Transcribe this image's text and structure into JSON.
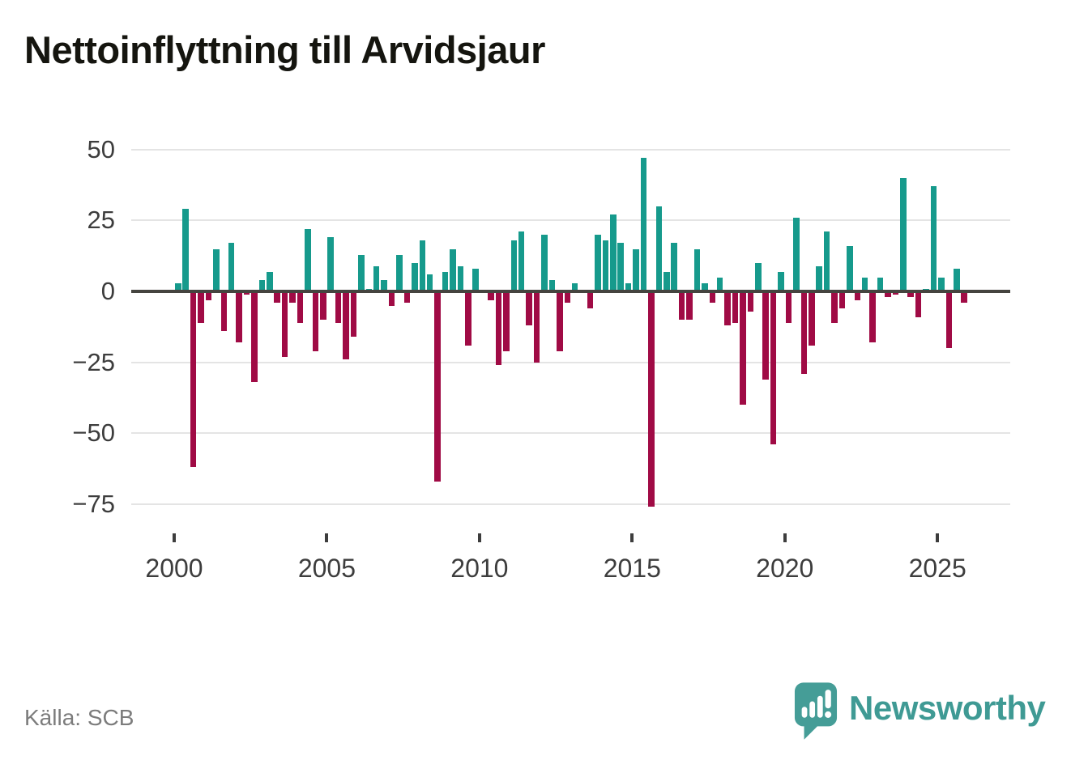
{
  "title": "Nettoinflyttning till Arvidsjaur",
  "source": "Källa: SCB",
  "brand": {
    "name": "Newsworthy"
  },
  "colors": {
    "positive_bar": "#169a8c",
    "negative_bar": "#a00b45",
    "zero_line": "#45443f",
    "gridline": "#e4e4e4",
    "axis_text": "#3d3d3d",
    "source_text": "#7c7c7c",
    "brand_teal": "#3f9a94",
    "title_text": "#15150f"
  },
  "y_axis": {
    "ticks": [
      50,
      25,
      0,
      -25,
      -50,
      -75
    ]
  },
  "x_axis": {
    "ticks": [
      2000,
      2005,
      2010,
      2015,
      2020,
      2025
    ]
  },
  "chart_data": {
    "type": "bar",
    "title": "Nettoinflyttning till Arvidsjaur",
    "frequency": "quarterly",
    "start_period": "2000 Q1",
    "end_period": "2025 Q4",
    "ylim": [
      -75,
      50
    ],
    "xlabel": "",
    "ylabel": "",
    "grid": true,
    "legend": false,
    "values": [
      3,
      29,
      -62,
      -11,
      -3,
      15,
      -14,
      17,
      -18,
      -1,
      -32,
      4,
      7,
      -4,
      -23,
      -4,
      -11,
      22,
      -21,
      -10,
      19,
      -11,
      -24,
      -16,
      13,
      1,
      9,
      4,
      -5,
      13,
      -4,
      10,
      18,
      6,
      -67,
      7,
      15,
      9,
      -19,
      8,
      0,
      -3,
      -26,
      -21,
      18,
      21,
      -12,
      -25,
      20,
      4,
      -21,
      -4,
      3,
      0,
      -6,
      20,
      18,
      27,
      17,
      3,
      15,
      47,
      -76,
      30,
      7,
      17,
      -10,
      -10,
      15,
      3,
      -4,
      5,
      -12,
      -11,
      -40,
      -7,
      10,
      -31,
      -54,
      7,
      -11,
      26,
      -29,
      -19,
      9,
      21,
      -11,
      -6,
      16,
      -3,
      5,
      -18,
      5,
      -2,
      -1,
      40,
      -2,
      -9,
      1,
      37,
      5,
      -20,
      8,
      -4
    ]
  }
}
